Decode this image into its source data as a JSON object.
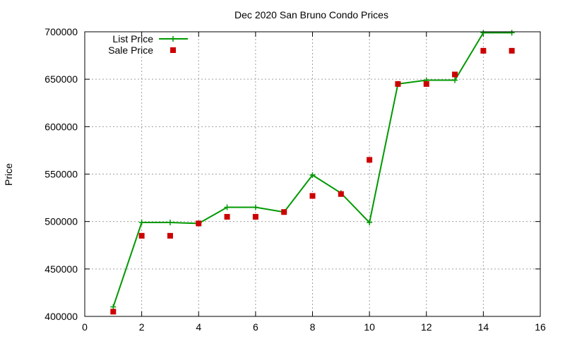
{
  "chart_data": {
    "type": "line",
    "title": "Dec 2020 San Bruno Condo Prices",
    "xlabel": "",
    "ylabel": "Price",
    "xlim": [
      0,
      16
    ],
    "ylim": [
      400000,
      700000
    ],
    "x_ticks": [
      0,
      2,
      4,
      6,
      8,
      10,
      12,
      14,
      16
    ],
    "y_ticks": [
      400000,
      450000,
      500000,
      550000,
      600000,
      650000,
      700000
    ],
    "grid": true,
    "legend_position": "top-left",
    "series": [
      {
        "name": "List Price",
        "style": "line-with-plus-markers",
        "color": "#009900",
        "x": [
          1,
          2,
          3,
          4,
          5,
          6,
          7,
          8,
          9,
          10,
          11,
          12,
          13,
          14,
          15
        ],
        "y": [
          410000,
          499000,
          499000,
          498000,
          515000,
          515000,
          510000,
          549000,
          530000,
          499000,
          645000,
          649000,
          649000,
          699000,
          699000
        ]
      },
      {
        "name": "Sale Price",
        "style": "square-points",
        "color": "#cc0000",
        "x": [
          1,
          2,
          3,
          4,
          5,
          6,
          7,
          8,
          9,
          10,
          11,
          12,
          13,
          14,
          15
        ],
        "y": [
          405000,
          485000,
          485000,
          498000,
          505000,
          505000,
          510000,
          527000,
          529000,
          565000,
          645000,
          645000,
          655000,
          680000,
          680000
        ]
      }
    ]
  }
}
